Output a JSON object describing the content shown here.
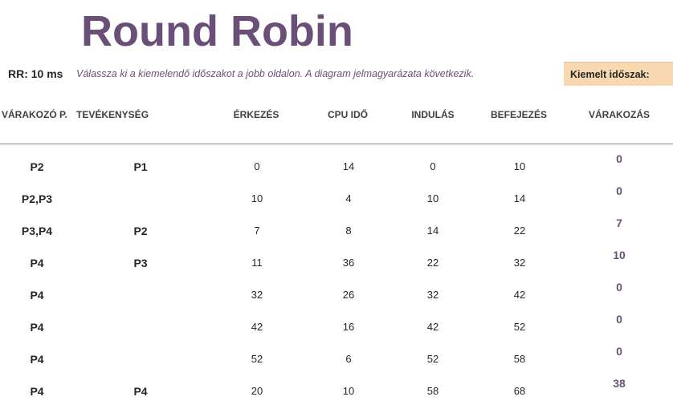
{
  "title": "Round Robin",
  "rr_label": "RR: 10 ms",
  "instructions": "Válassza ki a kiemelendő időszakot a jobb oldalon.  A diagram jelmagyarázata következik.",
  "highlight_label": "Kiemelt időszak:",
  "headers": {
    "waiting": "VÁRAKOZÓ P.",
    "activity": "TEVÉKENYSÉG",
    "arrival": "ÉRKEZÉS",
    "cpu": "CPU IDŐ",
    "start": "INDULÁS",
    "finish": "BEFEJEZÉS",
    "wait": "VÁRAKOZÁS"
  },
  "rows": [
    {
      "waiting": "P2",
      "activity": "P1",
      "arrival": "0",
      "cpu": "14",
      "start": "0",
      "finish": "10",
      "wait": "0"
    },
    {
      "waiting": "P2,P3",
      "activity": "",
      "arrival": "10",
      "cpu": "4",
      "start": "10",
      "finish": "14",
      "wait": "0"
    },
    {
      "waiting": "P3,P4",
      "activity": "P2",
      "arrival": "7",
      "cpu": "8",
      "start": "14",
      "finish": "22",
      "wait": "7"
    },
    {
      "waiting": "P4",
      "activity": "P3",
      "arrival": "11",
      "cpu": "36",
      "start": "22",
      "finish": "32",
      "wait": "10"
    },
    {
      "waiting": "P4",
      "activity": "",
      "arrival": "32",
      "cpu": "26",
      "start": "32",
      "finish": "42",
      "wait": "0"
    },
    {
      "waiting": "P4",
      "activity": "",
      "arrival": "42",
      "cpu": "16",
      "start": "42",
      "finish": "52",
      "wait": "0"
    },
    {
      "waiting": "P4",
      "activity": "",
      "arrival": "52",
      "cpu": "6",
      "start": "52",
      "finish": "58",
      "wait": "0"
    },
    {
      "waiting": "P4",
      "activity": "P4",
      "arrival": "20",
      "cpu": "10",
      "start": "58",
      "finish": "68",
      "wait": "38"
    }
  ]
}
